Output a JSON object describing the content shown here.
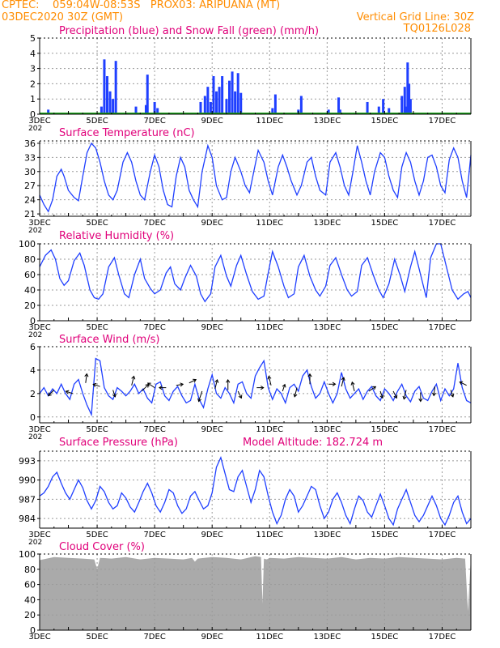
{
  "header": {
    "line1_left": "CPTEC:    059:04W-08:53S   PROX03: ARIPUANA (MT)",
    "line2_left": "03DEC2020 30Z (GMT)",
    "line2_right": "Vertical Grid Line: 30Z",
    "line3_right": "TQ0126L028"
  },
  "colors": {
    "header": "#ff8c00",
    "title": "#e0007a",
    "series": "#1f3fff",
    "snow": "#1aa01a",
    "cloud": "#aaaaaa",
    "grid": "#9a9a9a"
  },
  "x_axis": {
    "tick_labels": [
      "3DEC",
      "5DEC",
      "7DEC",
      "9DEC",
      "11DEC",
      "13DEC",
      "15DEC",
      "17DEC"
    ],
    "tick_days": [
      3,
      5,
      7,
      9,
      11,
      13,
      15,
      17
    ],
    "year_stub": "202"
  },
  "chart_data": [
    {
      "id": "precip",
      "type": "bar",
      "title": "Precipitation (blue) and Snow Fall (green) (mm/h)",
      "ylim": [
        0,
        5
      ],
      "yticks": [
        0,
        1,
        2,
        3,
        4,
        5
      ],
      "xlim": [
        3.0,
        18.0
      ],
      "series": [
        {
          "name": "Precipitation",
          "x": [
            3.3,
            5.15,
            5.25,
            5.35,
            5.45,
            5.55,
            5.65,
            6.35,
            6.7,
            6.75,
            7.0,
            7.1,
            8.6,
            8.75,
            8.85,
            8.95,
            9.05,
            9.15,
            9.25,
            9.35,
            9.5,
            9.6,
            9.7,
            9.8,
            9.9,
            10.0,
            11.1,
            11.2,
            12.0,
            12.1,
            13.05,
            13.4,
            13.45,
            14.4,
            14.8,
            14.95,
            15.15,
            15.6,
            15.7,
            15.75,
            15.8,
            15.85,
            15.9
          ],
          "values": [
            0.3,
            0.5,
            3.6,
            2.5,
            1.5,
            1.0,
            3.5,
            0.5,
            0.6,
            2.6,
            0.8,
            0.4,
            0.8,
            1.2,
            1.8,
            0.8,
            2.5,
            1.5,
            1.8,
            2.5,
            1.0,
            2.2,
            2.8,
            1.5,
            2.7,
            1.4,
            0.4,
            1.3,
            0.3,
            1.2,
            0.3,
            1.1,
            0.3,
            0.8,
            0.5,
            1.0,
            0.4,
            1.2,
            1.8,
            0.5,
            3.4,
            2.0,
            1.0
          ]
        },
        {
          "name": "Snow Fall",
          "x": [
            3.0,
            18.0
          ],
          "values": [
            0.05,
            0.05
          ]
        }
      ]
    },
    {
      "id": "temp",
      "type": "line",
      "title": "Surface Temperature (nC)",
      "ylim": [
        20.5,
        36.5
      ],
      "yticks": [
        21,
        24,
        27,
        30,
        33,
        36
      ],
      "xlim": [
        3.0,
        18.0
      ],
      "x": [
        3.0,
        3.15,
        3.3,
        3.45,
        3.6,
        3.75,
        3.85,
        4.0,
        4.2,
        4.35,
        4.5,
        4.65,
        4.8,
        4.95,
        5.1,
        5.25,
        5.4,
        5.55,
        5.7,
        5.9,
        6.05,
        6.2,
        6.35,
        6.5,
        6.65,
        6.85,
        7.0,
        7.15,
        7.3,
        7.45,
        7.6,
        7.75,
        7.9,
        8.05,
        8.2,
        8.35,
        8.5,
        8.65,
        8.85,
        9.0,
        9.15,
        9.35,
        9.5,
        9.65,
        9.8,
        10.0,
        10.15,
        10.3,
        10.45,
        10.6,
        10.8,
        10.95,
        11.1,
        11.3,
        11.45,
        11.6,
        11.75,
        11.95,
        12.1,
        12.3,
        12.45,
        12.6,
        12.75,
        12.95,
        13.1,
        13.3,
        13.45,
        13.6,
        13.75,
        13.9,
        14.05,
        14.2,
        14.35,
        14.5,
        14.65,
        14.85,
        15.0,
        15.15,
        15.3,
        15.45,
        15.6,
        15.75,
        15.9,
        16.05,
        16.2,
        16.35,
        16.5,
        16.65,
        16.8,
        16.95,
        17.1,
        17.25,
        17.4,
        17.55,
        17.7,
        17.85,
        18.0
      ],
      "values": [
        25.0,
        23.0,
        21.5,
        24.0,
        29.0,
        30.5,
        29.0,
        26.0,
        24.5,
        23.8,
        29.0,
        34.0,
        36.0,
        35.0,
        32.0,
        28.0,
        25.0,
        24.0,
        26.0,
        32.0,
        34.0,
        32.0,
        28.0,
        25.0,
        24.0,
        30.0,
        33.5,
        31.0,
        26.0,
        23.0,
        22.5,
        29.0,
        33.0,
        31.0,
        26.0,
        24.0,
        22.5,
        30.0,
        35.5,
        33.0,
        27.0,
        24.0,
        24.5,
        30.0,
        33.0,
        30.0,
        27.0,
        25.5,
        30.0,
        34.5,
        32.0,
        28.0,
        25.0,
        31.0,
        33.5,
        31.0,
        28.0,
        25.0,
        27.0,
        32.0,
        33.0,
        29.0,
        26.0,
        25.0,
        32.0,
        34.0,
        31.0,
        27.0,
        25.0,
        30.0,
        35.5,
        32.0,
        28.0,
        25.0,
        30.0,
        34.0,
        33.0,
        29.0,
        26.0,
        24.5,
        31.0,
        34.0,
        32.0,
        28.0,
        25.0,
        28.0,
        33.0,
        33.5,
        31.0,
        27.0,
        25.5,
        32.5,
        35.0,
        33.0,
        28.0,
        24.5,
        33.5
      ]
    },
    {
      "id": "rh",
      "type": "line",
      "title": "Relative Humidity (%)",
      "ylim": [
        0,
        100
      ],
      "yticks": [
        0,
        20,
        40,
        60,
        80,
        100
      ],
      "xlim": [
        3.0,
        18.0
      ],
      "x": [
        3.0,
        3.2,
        3.4,
        3.55,
        3.7,
        3.85,
        4.0,
        4.2,
        4.4,
        4.55,
        4.75,
        4.9,
        5.05,
        5.2,
        5.4,
        5.6,
        5.75,
        5.95,
        6.1,
        6.3,
        6.5,
        6.65,
        6.85,
        7.0,
        7.2,
        7.4,
        7.55,
        7.7,
        7.9,
        8.05,
        8.25,
        8.45,
        8.6,
        8.75,
        8.95,
        9.1,
        9.3,
        9.5,
        9.65,
        9.85,
        10.0,
        10.2,
        10.4,
        10.6,
        10.8,
        10.95,
        11.1,
        11.3,
        11.5,
        11.65,
        11.85,
        12.0,
        12.2,
        12.4,
        12.6,
        12.75,
        12.95,
        13.1,
        13.3,
        13.5,
        13.7,
        13.85,
        14.05,
        14.2,
        14.4,
        14.6,
        14.8,
        14.95,
        15.15,
        15.35,
        15.55,
        15.7,
        15.9,
        16.05,
        16.25,
        16.45,
        16.6,
        16.8,
        16.95,
        17.15,
        17.35,
        17.55,
        17.75,
        17.9,
        18.0
      ],
      "values": [
        70.0,
        85.0,
        92.0,
        80.0,
        55.0,
        46.0,
        52.0,
        78.0,
        88.0,
        72.0,
        40.0,
        30.0,
        28.0,
        35.0,
        70.0,
        82.0,
        60.0,
        35.0,
        30.0,
        60.0,
        80.0,
        55.0,
        42.0,
        35.0,
        40.0,
        62.0,
        70.0,
        48.0,
        40.0,
        55.0,
        72.0,
        58.0,
        35.0,
        25.0,
        35.0,
        70.0,
        85.0,
        58.0,
        45.0,
        72.0,
        85.0,
        60.0,
        38.0,
        28.0,
        32.0,
        62.0,
        90.0,
        70.0,
        45.0,
        30.0,
        35.0,
        70.0,
        85.0,
        58.0,
        40.0,
        32.0,
        45.0,
        72.0,
        82.0,
        60.0,
        40.0,
        32.0,
        38.0,
        72.0,
        82.0,
        60.0,
        40.0,
        30.0,
        48.0,
        80.0,
        58.0,
        38.0,
        70.0,
        90.0,
        60.0,
        30.0,
        82.0,
        100.0,
        100.0,
        70.0,
        40.0,
        28.0,
        35.0,
        38.0,
        30.0
      ]
    },
    {
      "id": "wind",
      "type": "line",
      "title": "Surface Wind (m/s)",
      "ylim": [
        -0.5,
        6
      ],
      "yticks": [
        0,
        2,
        4,
        6
      ],
      "xlim": [
        3.0,
        18.0
      ],
      "x": [
        3.0,
        3.15,
        3.3,
        3.45,
        3.6,
        3.75,
        3.9,
        4.05,
        4.2,
        4.35,
        4.5,
        4.65,
        4.8,
        4.95,
        5.1,
        5.25,
        5.4,
        5.55,
        5.7,
        5.85,
        6.0,
        6.15,
        6.3,
        6.45,
        6.6,
        6.75,
        6.9,
        7.05,
        7.2,
        7.35,
        7.5,
        7.65,
        7.8,
        7.95,
        8.1,
        8.25,
        8.4,
        8.55,
        8.7,
        8.85,
        9.0,
        9.15,
        9.3,
        9.45,
        9.6,
        9.75,
        9.9,
        10.05,
        10.2,
        10.35,
        10.5,
        10.65,
        10.8,
        10.95,
        11.1,
        11.25,
        11.4,
        11.55,
        11.7,
        11.85,
        12.0,
        12.15,
        12.3,
        12.45,
        12.6,
        12.75,
        12.9,
        13.05,
        13.2,
        13.35,
        13.5,
        13.65,
        13.8,
        13.95,
        14.1,
        14.25,
        14.4,
        14.55,
        14.7,
        14.85,
        15.0,
        15.15,
        15.3,
        15.45,
        15.6,
        15.75,
        15.9,
        16.05,
        16.2,
        16.35,
        16.5,
        16.65,
        16.8,
        16.95,
        17.1,
        17.25,
        17.4,
        17.55,
        17.7,
        17.85,
        18.0
      ],
      "values": [
        2.0,
        2.5,
        1.8,
        2.4,
        2.0,
        2.8,
        2.0,
        1.5,
        2.8,
        3.2,
        2.0,
        1.0,
        0.2,
        5.0,
        4.8,
        2.5,
        1.8,
        1.5,
        2.5,
        2.2,
        1.8,
        2.2,
        2.8,
        2.0,
        2.4,
        1.6,
        1.2,
        2.8,
        3.0,
        1.8,
        1.4,
        2.2,
        2.6,
        1.8,
        1.2,
        1.4,
        2.8,
        1.5,
        0.8,
        2.4,
        3.6,
        2.0,
        1.6,
        2.5,
        2.0,
        1.2,
        2.8,
        3.0,
        2.0,
        1.6,
        3.5,
        4.2,
        4.8,
        2.5,
        1.5,
        2.4,
        2.0,
        1.2,
        2.5,
        2.8,
        2.2,
        3.5,
        4.0,
        2.6,
        1.6,
        2.0,
        3.0,
        2.0,
        1.2,
        2.0,
        3.8,
        2.4,
        1.6,
        2.0,
        2.4,
        1.5,
        2.2,
        2.6,
        1.8,
        1.4,
        2.4,
        2.0,
        1.4,
        2.2,
        2.8,
        1.8,
        1.3,
        2.2,
        2.6,
        1.6,
        1.4,
        2.2,
        2.8,
        1.4,
        2.4,
        1.8,
        2.4,
        4.6,
        2.5,
        1.4,
        1.2
      ],
      "vectors": [
        {
          "x": 3.5,
          "y": 2.3,
          "u": -0.5,
          "v": -0.5
        },
        {
          "x": 4.15,
          "y": 2.0,
          "u": -0.6,
          "v": 0.2
        },
        {
          "x": 4.6,
          "y": 2.9,
          "u": 0.1,
          "v": 0.8
        },
        {
          "x": 5.1,
          "y": 2.6,
          "u": -0.6,
          "v": 0.2
        },
        {
          "x": 5.55,
          "y": 2.3,
          "u": 0.2,
          "v": -0.6
        },
        {
          "x": 6.2,
          "y": 2.7,
          "u": 0.2,
          "v": 0.8
        },
        {
          "x": 6.55,
          "y": 2.2,
          "u": 0.6,
          "v": 0.6
        },
        {
          "x": 7.0,
          "y": 2.5,
          "u": -0.6,
          "v": 0.4
        },
        {
          "x": 7.4,
          "y": 2.5,
          "u": -0.6,
          "v": 0.0
        },
        {
          "x": 7.75,
          "y": 2.7,
          "u": 0.6,
          "v": 0.1
        },
        {
          "x": 8.2,
          "y": 2.9,
          "u": 0.6,
          "v": 0.3
        },
        {
          "x": 8.65,
          "y": 2.2,
          "u": -0.3,
          "v": -0.9
        },
        {
          "x": 9.1,
          "y": 2.4,
          "u": 0.2,
          "v": 0.8
        },
        {
          "x": 9.55,
          "y": 2.3,
          "u": 0.0,
          "v": 0.9
        },
        {
          "x": 9.9,
          "y": 2.2,
          "u": 0.3,
          "v": -0.6
        },
        {
          "x": 10.55,
          "y": 2.5,
          "u": 0.6,
          "v": 0.0
        },
        {
          "x": 11.05,
          "y": 2.7,
          "u": -0.2,
          "v": 0.8
        },
        {
          "x": 11.45,
          "y": 2.2,
          "u": 0.2,
          "v": 0.6
        },
        {
          "x": 11.95,
          "y": 2.5,
          "u": -0.2,
          "v": -0.8
        },
        {
          "x": 12.4,
          "y": 2.8,
          "u": 0.0,
          "v": 0.9
        },
        {
          "x": 13.05,
          "y": 2.8,
          "u": 0.6,
          "v": 0.0
        },
        {
          "x": 13.5,
          "y": 2.6,
          "u": 0.2,
          "v": 0.8
        },
        {
          "x": 13.95,
          "y": 2.2,
          "u": -0.2,
          "v": 0.8
        },
        {
          "x": 14.45,
          "y": 2.2,
          "u": 0.6,
          "v": 0.4
        },
        {
          "x": 14.85,
          "y": 2.2,
          "u": 0.2,
          "v": -0.6
        },
        {
          "x": 15.3,
          "y": 2.2,
          "u": 0.3,
          "v": -0.6
        },
        {
          "x": 15.75,
          "y": 2.3,
          "u": -0.2,
          "v": -0.8
        },
        {
          "x": 16.25,
          "y": 2.1,
          "u": 0.0,
          "v": -0.8
        },
        {
          "x": 16.75,
          "y": 2.6,
          "u": -0.1,
          "v": -0.8
        },
        {
          "x": 17.3,
          "y": 2.3,
          "u": 0.2,
          "v": -0.6
        },
        {
          "x": 17.85,
          "y": 2.7,
          "u": -0.6,
          "v": 0.3
        }
      ]
    },
    {
      "id": "pressure",
      "type": "line",
      "title": "Surface Pressure (hPa)",
      "subtitle": "Model Altitude: 182.724 m",
      "ylim": [
        982.5,
        994.5
      ],
      "yticks": [
        984,
        987,
        990,
        993
      ],
      "xlim": [
        3.0,
        18.0
      ],
      "x": [
        3.0,
        3.15,
        3.3,
        3.45,
        3.6,
        3.75,
        3.9,
        4.05,
        4.2,
        4.35,
        4.5,
        4.65,
        4.8,
        4.95,
        5.1,
        5.25,
        5.4,
        5.55,
        5.7,
        5.85,
        6.0,
        6.15,
        6.3,
        6.45,
        6.6,
        6.75,
        6.9,
        7.05,
        7.2,
        7.35,
        7.5,
        7.65,
        7.8,
        7.95,
        8.1,
        8.25,
        8.4,
        8.55,
        8.7,
        8.85,
        9.0,
        9.15,
        9.3,
        9.45,
        9.6,
        9.75,
        9.9,
        10.05,
        10.2,
        10.35,
        10.5,
        10.65,
        10.8,
        10.95,
        11.1,
        11.25,
        11.4,
        11.55,
        11.7,
        11.85,
        12.0,
        12.15,
        12.3,
        12.45,
        12.6,
        12.75,
        12.9,
        13.05,
        13.2,
        13.35,
        13.5,
        13.65,
        13.8,
        13.95,
        14.1,
        14.25,
        14.4,
        14.55,
        14.7,
        14.85,
        15.0,
        15.15,
        15.3,
        15.45,
        15.6,
        15.75,
        15.9,
        16.05,
        16.2,
        16.35,
        16.5,
        16.65,
        16.8,
        16.95,
        17.1,
        17.25,
        17.4,
        17.55,
        17.7,
        17.85,
        18.0
      ],
      "values": [
        987.5,
        988.0,
        989.0,
        990.5,
        991.2,
        989.5,
        988.0,
        987.0,
        988.5,
        990.0,
        988.8,
        986.8,
        985.5,
        986.8,
        989.0,
        988.2,
        986.5,
        985.5,
        986.0,
        988.0,
        987.2,
        985.8,
        985.0,
        986.5,
        988.2,
        989.5,
        988.0,
        986.0,
        985.0,
        986.5,
        988.5,
        988.0,
        986.0,
        984.8,
        985.5,
        987.5,
        988.2,
        986.8,
        985.5,
        986.0,
        988.0,
        992.0,
        993.5,
        991.0,
        988.5,
        988.2,
        990.5,
        991.5,
        989.0,
        986.5,
        988.5,
        991.5,
        990.5,
        987.5,
        985.0,
        983.2,
        984.5,
        987.0,
        988.5,
        987.5,
        985.0,
        986.0,
        987.5,
        989.0,
        988.5,
        986.0,
        984.0,
        985.0,
        987.0,
        988.0,
        986.5,
        984.5,
        983.2,
        985.5,
        987.5,
        986.8,
        985.0,
        984.2,
        986.0,
        987.8,
        986.0,
        984.0,
        983.0,
        985.5,
        987.0,
        988.5,
        986.5,
        984.5,
        983.5,
        984.5,
        986.0,
        987.5,
        986.0,
        984.0,
        983.0,
        984.5,
        986.5,
        987.5,
        985.0,
        983.2,
        984.0
      ]
    },
    {
      "id": "cloud",
      "type": "area",
      "title": "Cloud Cover (%)",
      "ylim": [
        0,
        100
      ],
      "yticks": [
        0,
        20,
        40,
        60,
        80,
        100
      ],
      "xlim": [
        3.0,
        18.0
      ],
      "x": [
        3.0,
        3.5,
        4.0,
        4.5,
        4.9,
        5.0,
        5.1,
        5.5,
        6.0,
        6.5,
        7.0,
        7.5,
        8.0,
        8.3,
        8.4,
        8.5,
        9.0,
        9.5,
        10.0,
        10.5,
        10.7,
        10.75,
        10.8,
        10.9,
        11.0,
        11.5,
        12.0,
        12.5,
        13.0,
        13.5,
        14.0,
        14.5,
        15.0,
        15.5,
        16.0,
        16.5,
        17.0,
        17.5,
        17.8,
        17.9,
        18.0
      ],
      "values": [
        92,
        96,
        95,
        94,
        93,
        80,
        95,
        94,
        96,
        93,
        95,
        94,
        93,
        95,
        90,
        94,
        96,
        95,
        93,
        97,
        96,
        35,
        94,
        93,
        95,
        94,
        96,
        95,
        94,
        96,
        93,
        95,
        94,
        96,
        95,
        94,
        93,
        95,
        94,
        25,
        96
      ]
    }
  ]
}
